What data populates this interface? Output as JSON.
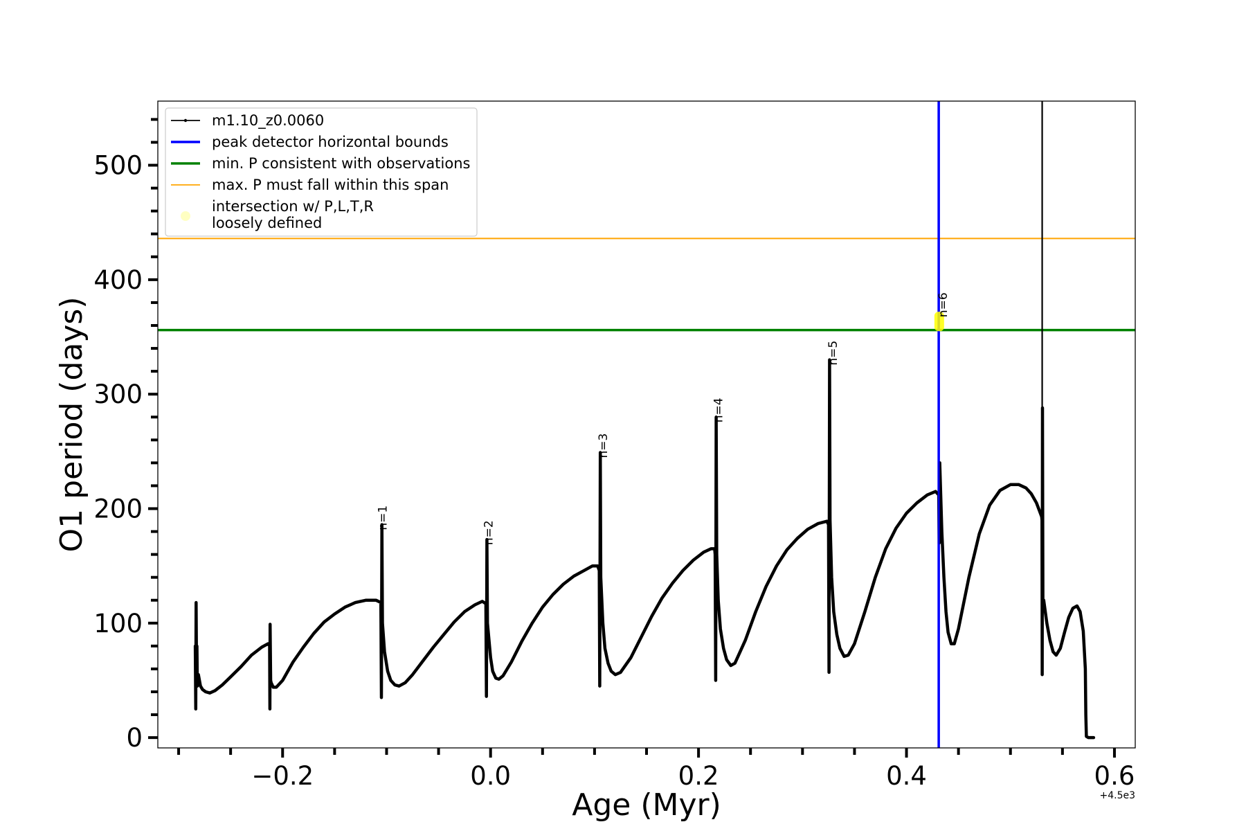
{
  "chart_data": {
    "type": "line",
    "xlabel": "Age (Myr)",
    "ylabel": "O1 period (days)",
    "x_offset_label": "+4.5e3",
    "xlim": [
      -0.32,
      0.62
    ],
    "ylim": [
      -9,
      556
    ],
    "x_ticks": [
      -0.2,
      0.0,
      0.2,
      0.4,
      0.6
    ],
    "x_tick_labels": [
      "−0.2",
      "0.0",
      "0.2",
      "0.4",
      "0.6"
    ],
    "x_minor_step": 0.05,
    "y_ticks": [
      0,
      100,
      200,
      300,
      400,
      500
    ],
    "y_tick_labels": [
      "0",
      "100",
      "200",
      "300",
      "400",
      "500"
    ],
    "y_minor_step": 20,
    "grid": false,
    "legend_position": "top-left",
    "legend": [
      {
        "label": "m1.10_z0.0060",
        "color": "#000000",
        "style": "line-marker"
      },
      {
        "label": "peak detector horizontal bounds",
        "color": "#0000ff",
        "style": "line"
      },
      {
        "label": "min. P consistent with observations",
        "color": "#008000",
        "style": "line"
      },
      {
        "label": "max. P must fall within this span",
        "color": "#ffa500",
        "style": "thin-line"
      },
      {
        "label_lines": [
          "intersection w/ P,L,T,R",
          "loosely defined"
        ],
        "color": "#ffff99",
        "style": "dot"
      }
    ],
    "hlines": [
      {
        "name": "min. P consistent with observations",
        "y": 356,
        "color": "#008000"
      },
      {
        "name": "max. P must fall within this span",
        "y": 436,
        "color": "#ffa500"
      }
    ],
    "vlines": [
      {
        "name": "peak detector horizontal bounds",
        "x": 0.431,
        "color": "#0000ff"
      }
    ],
    "highlight": {
      "x": 0.4315,
      "y_min": 355,
      "y_max": 372,
      "color": "#ffff00"
    },
    "annotations": [
      {
        "text": "n=1",
        "x": -0.104,
        "y": 186
      },
      {
        "text": "n=2",
        "x": -0.002,
        "y": 173
      },
      {
        "text": "n=3",
        "x": 0.108,
        "y": 249
      },
      {
        "text": "n=4",
        "x": 0.219,
        "y": 280
      },
      {
        "text": "n=5",
        "x": 0.329,
        "y": 330
      },
      {
        "text": "n=6",
        "x": 0.435,
        "y": 372
      }
    ],
    "series": [
      {
        "name": "m1.10_z0.0060",
        "color": "#000000",
        "points": [
          [
            -0.284,
            80
          ],
          [
            -0.2835,
            25
          ],
          [
            -0.2832,
            118
          ],
          [
            -0.2828,
            60
          ],
          [
            -0.2824,
            80
          ],
          [
            -0.282,
            45
          ],
          [
            -0.281,
            55
          ],
          [
            -0.279,
            45
          ],
          [
            -0.277,
            42
          ],
          [
            -0.274,
            40
          ],
          [
            -0.27,
            39
          ],
          [
            -0.265,
            41
          ],
          [
            -0.258,
            46
          ],
          [
            -0.25,
            53
          ],
          [
            -0.24,
            62
          ],
          [
            -0.23,
            72
          ],
          [
            -0.22,
            79
          ],
          [
            -0.214,
            82
          ],
          [
            -0.2125,
            80
          ],
          [
            -0.2122,
            25
          ],
          [
            -0.212,
            99
          ],
          [
            -0.2115,
            50
          ],
          [
            -0.211,
            48
          ],
          [
            -0.209,
            44
          ],
          [
            -0.206,
            44
          ],
          [
            -0.2,
            50
          ],
          [
            -0.19,
            66
          ],
          [
            -0.18,
            79
          ],
          [
            -0.17,
            91
          ],
          [
            -0.16,
            101
          ],
          [
            -0.15,
            108
          ],
          [
            -0.14,
            114
          ],
          [
            -0.13,
            118
          ],
          [
            -0.12,
            120
          ],
          [
            -0.11,
            120
          ],
          [
            -0.1055,
            118
          ],
          [
            -0.105,
            35
          ],
          [
            -0.1045,
            186
          ],
          [
            -0.104,
            100
          ],
          [
            -0.102,
            75
          ],
          [
            -0.099,
            58
          ],
          [
            -0.096,
            50
          ],
          [
            -0.092,
            46
          ],
          [
            -0.088,
            45
          ],
          [
            -0.082,
            48
          ],
          [
            -0.075,
            55
          ],
          [
            -0.065,
            67
          ],
          [
            -0.055,
            79
          ],
          [
            -0.045,
            90
          ],
          [
            -0.035,
            101
          ],
          [
            -0.025,
            110
          ],
          [
            -0.015,
            116
          ],
          [
            -0.008,
            119
          ],
          [
            -0.0045,
            117
          ],
          [
            -0.004,
            36
          ],
          [
            -0.0035,
            173
          ],
          [
            -0.003,
            100
          ],
          [
            0.0,
            70
          ],
          [
            0.002,
            58
          ],
          [
            0.005,
            52
          ],
          [
            0.008,
            51
          ],
          [
            0.012,
            54
          ],
          [
            0.02,
            66
          ],
          [
            0.03,
            84
          ],
          [
            0.04,
            100
          ],
          [
            0.05,
            114
          ],
          [
            0.06,
            125
          ],
          [
            0.07,
            134
          ],
          [
            0.08,
            141
          ],
          [
            0.09,
            146
          ],
          [
            0.098,
            150
          ],
          [
            0.103,
            150
          ],
          [
            0.1045,
            146
          ],
          [
            0.105,
            45
          ],
          [
            0.1055,
            249
          ],
          [
            0.106,
            140
          ],
          [
            0.108,
            100
          ],
          [
            0.11,
            78
          ],
          [
            0.113,
            65
          ],
          [
            0.116,
            58
          ],
          [
            0.12,
            55
          ],
          [
            0.125,
            57
          ],
          [
            0.135,
            70
          ],
          [
            0.145,
            88
          ],
          [
            0.155,
            106
          ],
          [
            0.165,
            122
          ],
          [
            0.175,
            135
          ],
          [
            0.185,
            146
          ],
          [
            0.195,
            155
          ],
          [
            0.205,
            162
          ],
          [
            0.212,
            165
          ],
          [
            0.2155,
            165
          ],
          [
            0.216,
            160
          ],
          [
            0.2165,
            50
          ],
          [
            0.217,
            280
          ],
          [
            0.2175,
            160
          ],
          [
            0.219,
            120
          ],
          [
            0.221,
            95
          ],
          [
            0.224,
            78
          ],
          [
            0.227,
            68
          ],
          [
            0.231,
            63
          ],
          [
            0.235,
            65
          ],
          [
            0.245,
            85
          ],
          [
            0.255,
            110
          ],
          [
            0.265,
            132
          ],
          [
            0.275,
            150
          ],
          [
            0.285,
            164
          ],
          [
            0.295,
            174
          ],
          [
            0.305,
            182
          ],
          [
            0.315,
            187
          ],
          [
            0.3235,
            189
          ],
          [
            0.325,
            186
          ],
          [
            0.3255,
            57
          ],
          [
            0.326,
            330
          ],
          [
            0.3265,
            190
          ],
          [
            0.328,
            140
          ],
          [
            0.33,
            110
          ],
          [
            0.333,
            90
          ],
          [
            0.336,
            78
          ],
          [
            0.34,
            71
          ],
          [
            0.344,
            72
          ],
          [
            0.35,
            82
          ],
          [
            0.36,
            110
          ],
          [
            0.37,
            140
          ],
          [
            0.38,
            165
          ],
          [
            0.39,
            183
          ],
          [
            0.4,
            196
          ],
          [
            0.41,
            205
          ],
          [
            0.42,
            212
          ],
          [
            0.428,
            215
          ],
          [
            0.431,
            212
          ],
          [
            0.4315,
            170
          ],
          [
            0.432,
            240
          ],
          [
            0.434,
            180
          ],
          [
            0.436,
            140
          ],
          [
            0.438,
            110
          ],
          [
            0.44,
            92
          ],
          [
            0.443,
            82
          ],
          [
            0.446,
            82
          ],
          [
            0.45,
            95
          ],
          [
            0.46,
            140
          ],
          [
            0.47,
            178
          ],
          [
            0.48,
            203
          ],
          [
            0.49,
            216
          ],
          [
            0.5,
            221
          ],
          [
            0.508,
            221
          ],
          [
            0.515,
            218
          ],
          [
            0.52,
            213
          ],
          [
            0.525,
            205
          ],
          [
            0.53,
            193
          ],
          [
            0.5303,
            190
          ],
          [
            0.5305,
            55
          ],
          [
            0.5308,
            288
          ],
          [
            0.5312,
            120
          ],
          [
            0.532,
            120
          ],
          [
            0.535,
            100
          ],
          [
            0.538,
            85
          ],
          [
            0.541,
            75
          ],
          [
            0.544,
            72
          ],
          [
            0.548,
            78
          ],
          [
            0.552,
            92
          ],
          [
            0.556,
            105
          ],
          [
            0.56,
            113
          ],
          [
            0.564,
            115
          ],
          [
            0.567,
            110
          ],
          [
            0.57,
            93
          ],
          [
            0.572,
            60
          ],
          [
            0.5725,
            20
          ],
          [
            0.573,
            1
          ],
          [
            0.575,
            0
          ],
          [
            0.58,
            0
          ]
        ]
      }
    ]
  }
}
